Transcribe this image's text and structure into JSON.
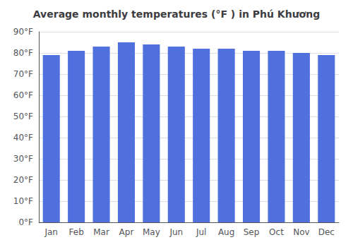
{
  "chart_data": {
    "type": "bar",
    "title": "Average monthly temperatures (°F ) in Phú Khương",
    "categories": [
      "Jan",
      "Feb",
      "Mar",
      "Apr",
      "May",
      "Jun",
      "Jul",
      "Aug",
      "Sep",
      "Oct",
      "Nov",
      "Dec"
    ],
    "values": [
      79,
      81,
      83,
      85,
      84,
      83,
      82,
      82,
      81,
      81,
      80,
      79
    ],
    "ylim": [
      0,
      90
    ],
    "yticks": [
      {
        "value": 0,
        "label": "0°F"
      },
      {
        "value": 10,
        "label": "10°F"
      },
      {
        "value": 20,
        "label": "20°F"
      },
      {
        "value": 30,
        "label": "30°F"
      },
      {
        "value": 40,
        "label": "40°F"
      },
      {
        "value": 50,
        "label": "50°F"
      },
      {
        "value": 60,
        "label": "60°F"
      },
      {
        "value": 70,
        "label": "70°F"
      },
      {
        "value": 80,
        "label": "80°F"
      },
      {
        "value": 90,
        "label": "90°F"
      }
    ],
    "grid": true
  }
}
